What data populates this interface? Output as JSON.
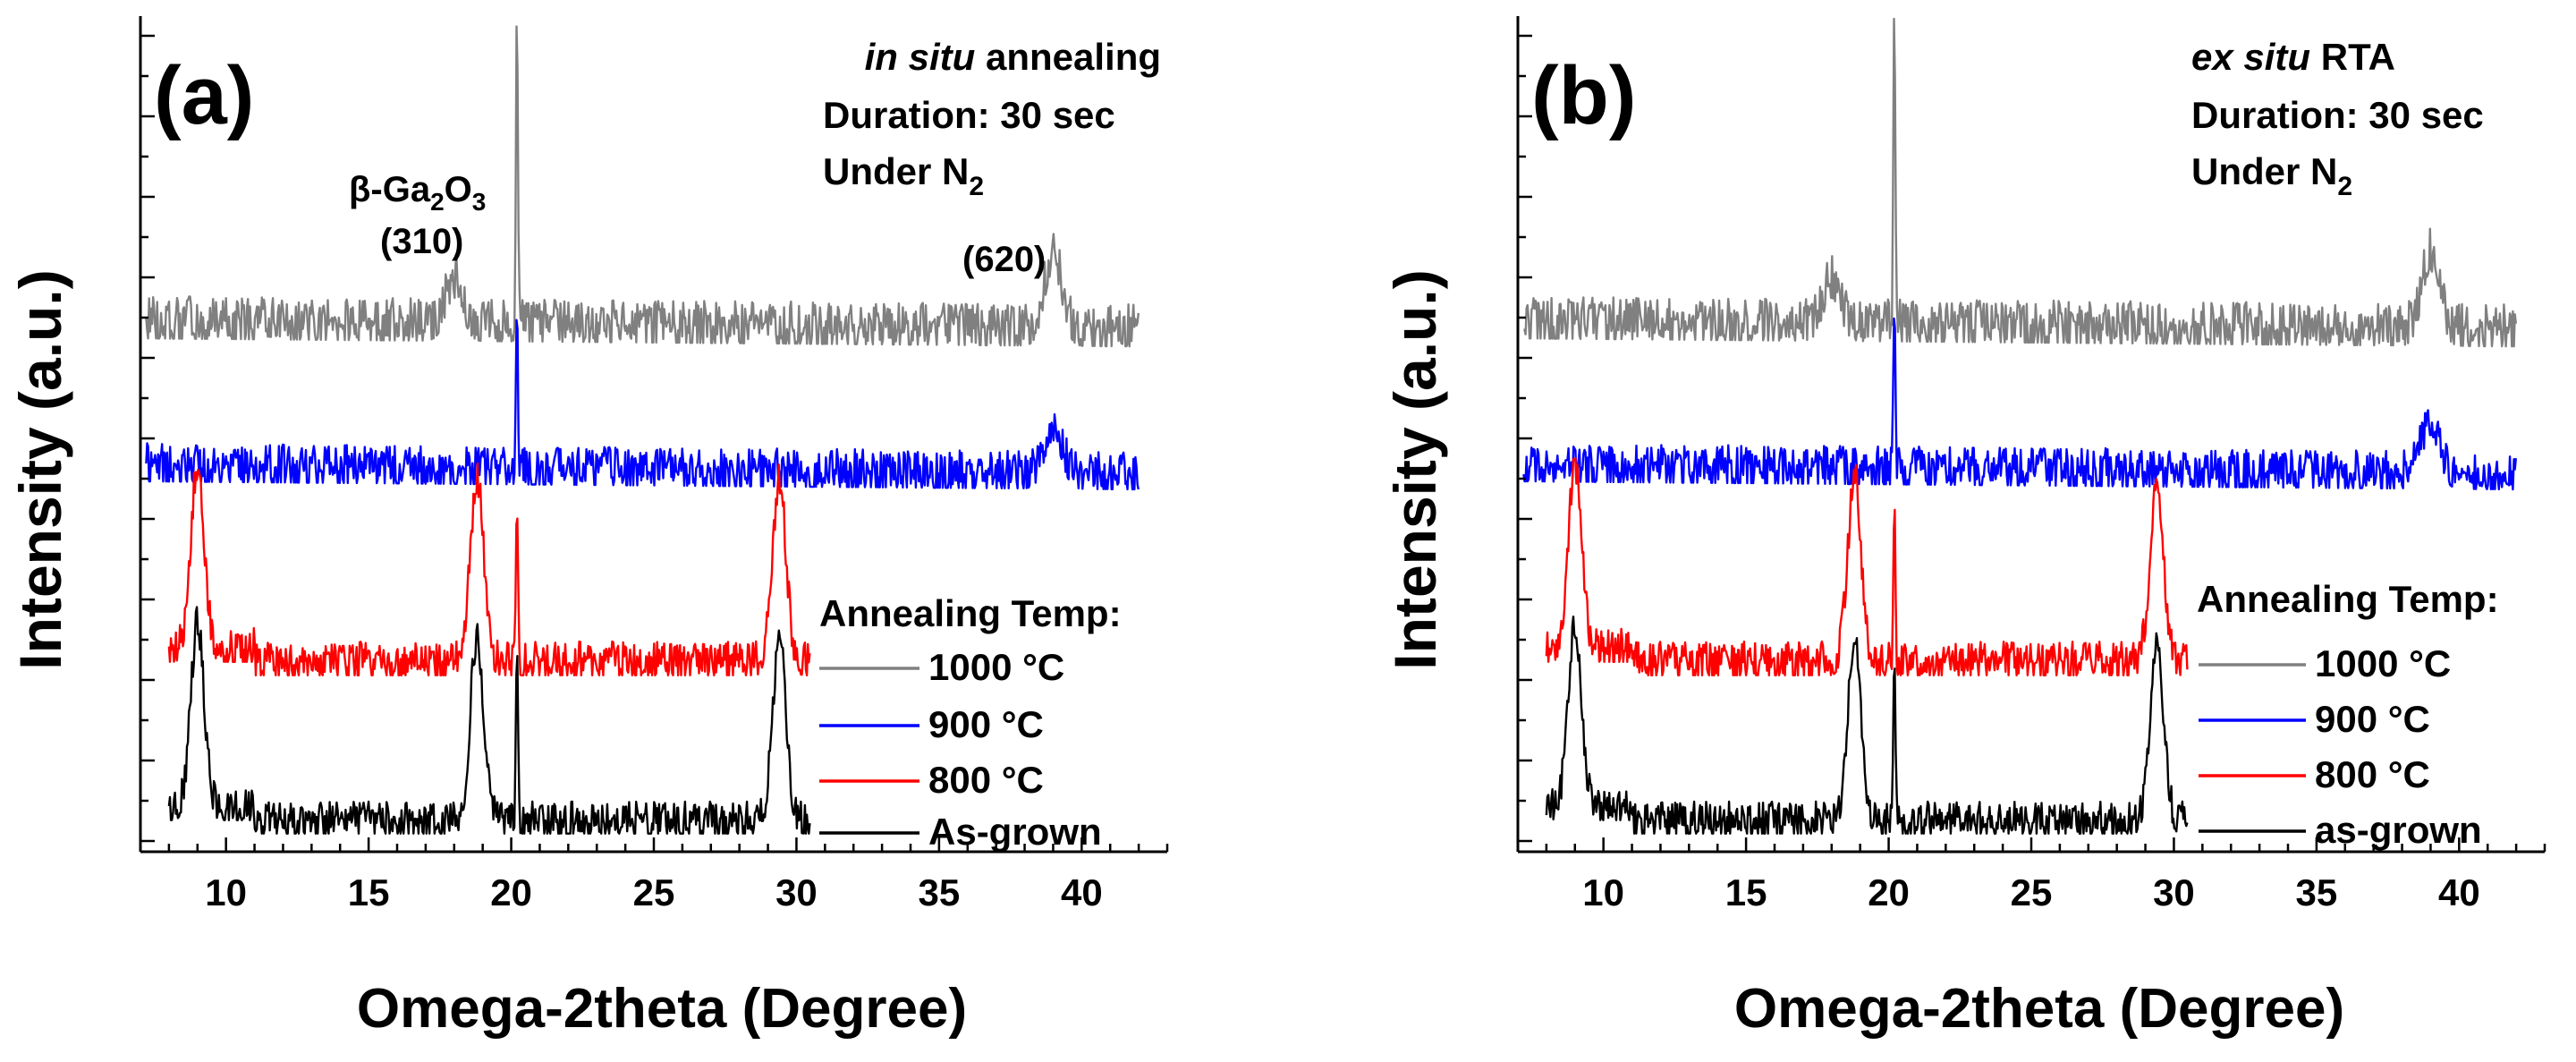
{
  "colors": {
    "s1000": "#808080",
    "s900": "#0000ff",
    "s800": "#ff0000",
    "asgrown": "#000000",
    "axis": "#000000"
  },
  "chart_data": [
    {
      "type": "line",
      "panel_label": "(a)",
      "xlabel": "Omega-2theta (Degree)",
      "ylabel": "Intensity (a.u.)",
      "xlim": [
        7,
        43
      ],
      "xticks": [
        "10",
        "15",
        "20",
        "25",
        "30",
        "35",
        "40"
      ],
      "yscale": "log, vertically offset stack, no tick labels",
      "condition": {
        "method_italic": "in situ",
        "method_rest": " annealing",
        "duration": "Duration: 30 sec",
        "atmosphere_base": "Under N",
        "atmosphere_sub": "2"
      },
      "annotations": [
        {
          "label_main": "β-Ga",
          "sub1": "2",
          "mid": "O",
          "sub2": "3",
          "label_hkl": "(310)",
          "near_x": 18
        },
        {
          "label_hkl": "(620)",
          "near_x": 39
        }
      ],
      "legend": {
        "title": "Annealing Temp:",
        "position": "bottom-right",
        "entries": [
          "1000 °C",
          "900 °C",
          "800 °C",
          "As-grown"
        ]
      },
      "series": [
        {
          "name": "1000 °C",
          "color_key": "s1000",
          "x_range": [
            7.2,
            42
          ],
          "peaks": [
            [
              18,
              0.8
            ],
            [
              20.2,
              5.6
            ],
            [
              39,
              1.4
            ]
          ]
        },
        {
          "name": "900 °C",
          "color_key": "s900",
          "x_range": [
            7.2,
            42
          ],
          "peaks": [
            [
              20.2,
              3.2
            ],
            [
              39,
              0.9
            ]
          ]
        },
        {
          "name": "800 °C",
          "color_key": "s800",
          "x_range": [
            8,
            30.5
          ],
          "peaks": [
            [
              9,
              3.4
            ],
            [
              18.8,
              3.4
            ],
            [
              20.2,
              3.2
            ],
            [
              29.4,
              3.4
            ]
          ]
        },
        {
          "name": "As-grown",
          "color_key": "asgrown",
          "x_range": [
            8,
            30.5
          ],
          "peaks": [
            [
              9,
              3.4
            ],
            [
              18.8,
              3.4
            ],
            [
              20.2,
              3.2
            ],
            [
              29.4,
              3.4
            ]
          ]
        }
      ]
    },
    {
      "type": "line",
      "panel_label": "(b)",
      "xlabel": "Omega-2theta (Degree)",
      "ylabel": "Intensity (a.u.)",
      "xlim": [
        7,
        43
      ],
      "xticks": [
        "10",
        "15",
        "20",
        "25",
        "30",
        "35",
        "40"
      ],
      "yscale": "log, vertically offset stack, no tick labels",
      "condition": {
        "method_italic": "ex situ",
        "method_rest": " RTA",
        "duration": "Duration: 30 sec",
        "atmosphere_base": "Under N",
        "atmosphere_sub": "2"
      },
      "annotations": [],
      "legend": {
        "title": "Annealing Temp:",
        "position": "bottom-right",
        "entries": [
          "1000 °C",
          "900 °C",
          "800 °C",
          "as-grown"
        ]
      },
      "series": [
        {
          "name": "1000 °C",
          "color_key": "s1000",
          "x_range": [
            7.2,
            42
          ],
          "peaks": [
            [
              18,
              0.8
            ],
            [
              20.2,
              5.8
            ],
            [
              39,
              1.4
            ]
          ]
        },
        {
          "name": "900 °C",
          "color_key": "s900",
          "x_range": [
            7.2,
            42
          ],
          "peaks": [
            [
              20.2,
              3.2
            ],
            [
              39,
              1.0
            ]
          ]
        },
        {
          "name": "800 °C",
          "color_key": "s800",
          "x_range": [
            8,
            30.5
          ],
          "peaks": [
            [
              9,
              3.4
            ],
            [
              18.8,
              3.4
            ],
            [
              20.2,
              3.2
            ],
            [
              29.4,
              3.4
            ]
          ]
        },
        {
          "name": "as-grown",
          "color_key": "asgrown",
          "x_range": [
            8,
            30.5
          ],
          "peaks": [
            [
              9,
              3.4
            ],
            [
              18.8,
              3.4
            ],
            [
              20.2,
              3.2
            ],
            [
              29.4,
              3.4
            ]
          ]
        }
      ]
    }
  ]
}
